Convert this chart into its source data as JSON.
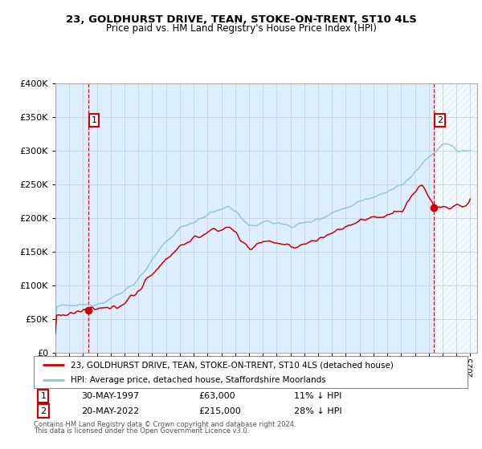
{
  "title": "23, GOLDHURST DRIVE, TEAN, STOKE-ON-TRENT, ST10 4LS",
  "subtitle": "Price paid vs. HM Land Registry's House Price Index (HPI)",
  "legend_line1": "23, GOLDHURST DRIVE, TEAN, STOKE-ON-TRENT, ST10 4LS (detached house)",
  "legend_line2": "HPI: Average price, detached house, Staffordshire Moorlands",
  "footnote1": "Contains HM Land Registry data © Crown copyright and database right 2024.",
  "footnote2": "This data is licensed under the Open Government Licence v3.0.",
  "sale1_date": "30-MAY-1997",
  "sale1_price": "£63,000",
  "sale1_hpi": "11% ↓ HPI",
  "sale2_date": "20-MAY-2022",
  "sale2_price": "£215,000",
  "sale2_hpi": "28% ↓ HPI",
  "ylim": [
    0,
    400000
  ],
  "xlim_start": 1995.0,
  "xlim_end": 2025.5,
  "sale1_x": 1997.38,
  "sale1_y": 63000,
  "sale2_x": 2022.38,
  "sale2_y": 215000,
  "hpi_color": "#92c5de",
  "price_color": "#cc0000",
  "bg_fill_color": "#ddeeff",
  "grid_color": "#c8d8e8",
  "hatch_color": "#c8d8e8"
}
